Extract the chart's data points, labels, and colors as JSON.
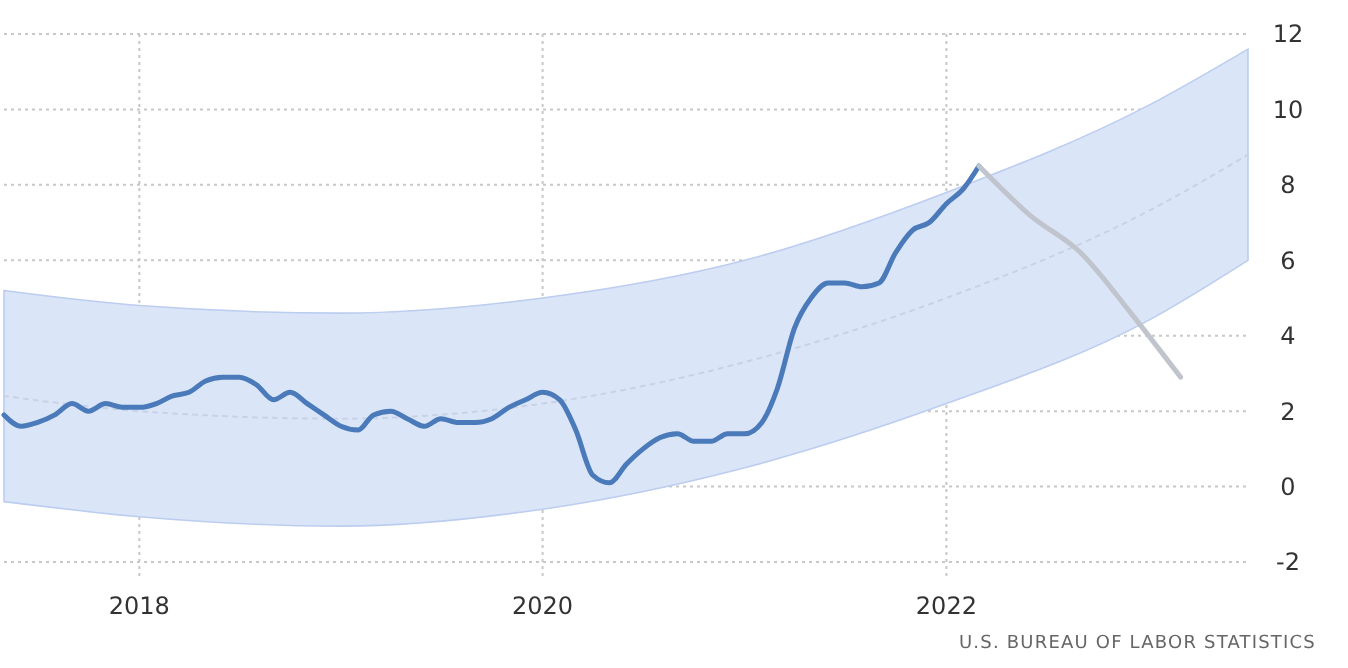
{
  "chart_data": {
    "type": "line",
    "xlim": [
      "2017-05",
      "2023-07"
    ],
    "xticks": [
      "2018",
      "2020",
      "2022"
    ],
    "ylim": [
      -2,
      12
    ],
    "yticks": [
      -2,
      0,
      2,
      4,
      6,
      8,
      10,
      12
    ],
    "grid": true,
    "annotations": [
      "U.S. BUREAU OF LABOR STATISTICS"
    ],
    "series": [
      {
        "color": "#c8d2e6",
        "line_style": "dotted",
        "x": [
          "2017-05",
          "2018-01",
          "2019-01",
          "2020-01",
          "2021-01",
          "2022-01",
          "2023-01",
          "2023-07"
        ],
        "values": [
          2.4,
          2.0,
          1.8,
          2.2,
          3.3,
          5.0,
          7.3,
          8.8
        ],
        "lower": [
          -0.4,
          -0.8,
          -1.05,
          -0.6,
          0.5,
          2.2,
          4.4,
          6.0
        ],
        "upper": [
          5.2,
          4.8,
          4.6,
          5.0,
          6.0,
          7.8,
          10.1,
          11.6
        ]
      },
      {
        "color": "#4a7ab9",
        "line_style": "solid",
        "x": [
          "2017-05",
          "2017-06",
          "2017-07",
          "2017-08",
          "2017-09",
          "2017-10",
          "2017-11",
          "2017-12",
          "2018-01",
          "2018-02",
          "2018-03",
          "2018-04",
          "2018-05",
          "2018-06",
          "2018-07",
          "2018-08",
          "2018-09",
          "2018-10",
          "2018-11",
          "2018-12",
          "2019-01",
          "2019-02",
          "2019-03",
          "2019-04",
          "2019-05",
          "2019-06",
          "2019-07",
          "2019-08",
          "2019-09",
          "2019-10",
          "2019-11",
          "2019-12",
          "2020-01",
          "2020-02",
          "2020-03",
          "2020-04",
          "2020-05",
          "2020-06",
          "2020-07",
          "2020-08",
          "2020-09",
          "2020-10",
          "2020-11",
          "2020-12",
          "2021-01",
          "2021-02",
          "2021-03",
          "2021-04",
          "2021-05",
          "2021-06",
          "2021-07",
          "2021-08",
          "2021-09",
          "2021-10",
          "2021-11",
          "2021-12",
          "2022-01",
          "2022-02",
          "2022-03"
        ],
        "values": [
          1.9,
          1.6,
          1.7,
          1.9,
          2.2,
          2.0,
          2.2,
          2.1,
          2.1,
          2.2,
          2.4,
          2.5,
          2.8,
          2.9,
          2.9,
          2.7,
          2.3,
          2.5,
          2.2,
          1.9,
          1.6,
          1.5,
          1.9,
          2.0,
          1.8,
          1.6,
          1.8,
          1.7,
          1.7,
          1.8,
          2.1,
          2.3,
          2.5,
          2.3,
          1.5,
          0.3,
          0.1,
          0.6,
          1.0,
          1.3,
          1.4,
          1.2,
          1.2,
          1.4,
          1.4,
          1.7,
          2.6,
          4.2,
          5.0,
          5.4,
          5.4,
          5.3,
          5.4,
          6.2,
          6.8,
          7.0,
          7.5,
          7.9,
          8.5
        ]
      },
      {
        "color": "#c0c4cc",
        "line_style": "solid",
        "x": [
          "2022-03",
          "2022-06",
          "2022-09",
          "2022-12",
          "2023-03"
        ],
        "values": [
          8.5,
          7.2,
          6.2,
          4.6,
          2.9
        ]
      }
    ]
  }
}
